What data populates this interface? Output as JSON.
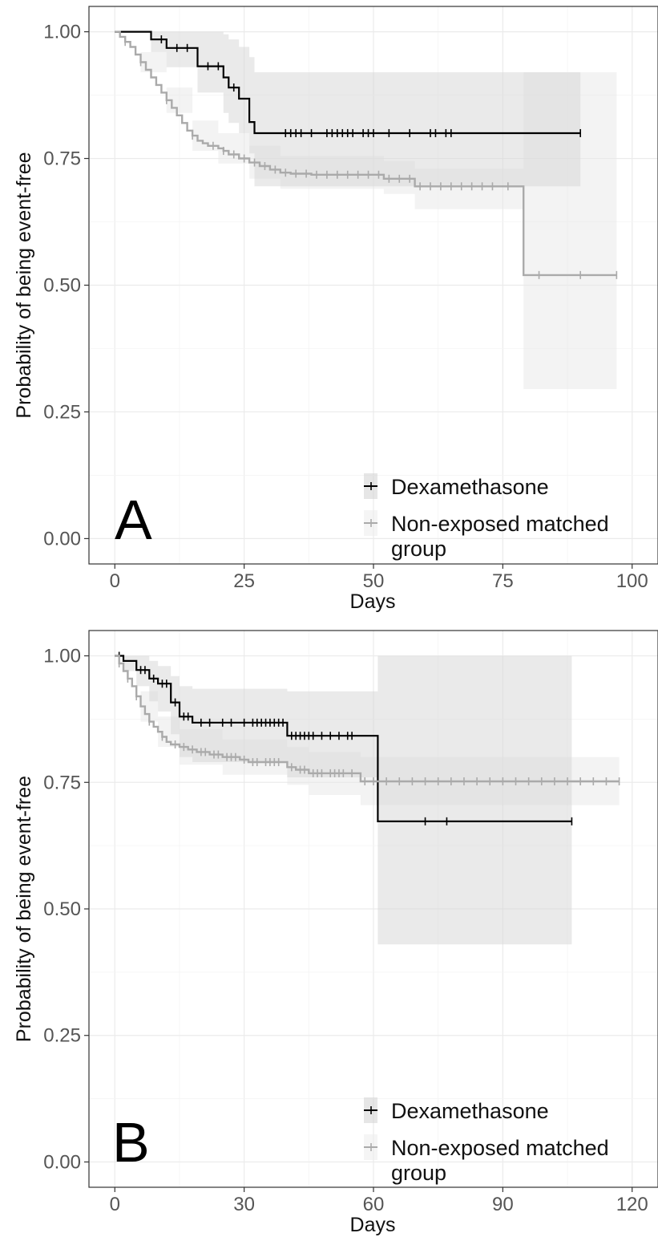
{
  "chart_data": [
    {
      "type": "line",
      "panel_label": "A",
      "xlabel": "Days",
      "ylabel": "Probability of being event-free",
      "xlim": [
        -5,
        105
      ],
      "ylim": [
        -0.05,
        1.05
      ],
      "x_ticks": [
        0,
        25,
        50,
        75,
        100
      ],
      "y_ticks": [
        0.0,
        0.25,
        0.5,
        0.75,
        1.0
      ],
      "y_tick_labels": [
        "0.00",
        "0.25",
        "0.50",
        "0.75",
        "1.00"
      ],
      "grid": true,
      "legend": {
        "position": "bottom-right",
        "entries": [
          {
            "label": "Dexamethasone",
            "lines": [
              "Dexamethasone"
            ]
          },
          {
            "label": "Non-exposed matched group",
            "lines": [
              "Non-exposed matched",
              "group"
            ]
          }
        ]
      },
      "series": [
        {
          "name": "Dexamethasone",
          "color": "#000000",
          "steps": [
            [
              0,
              1.0
            ],
            [
              7,
              0.985
            ],
            [
              10,
              0.968
            ],
            [
              16,
              0.932
            ],
            [
              21,
              0.91
            ],
            [
              22,
              0.89
            ],
            [
              24,
              0.868
            ],
            [
              26,
              0.822
            ],
            [
              27,
              0.8
            ],
            [
              90,
              0.8
            ]
          ],
          "ci": [
            [
              0,
              1.0,
              1.0
            ],
            [
              7,
              1.0,
              0.96
            ],
            [
              10,
              1.0,
              0.93
            ],
            [
              16,
              1.0,
              0.88
            ],
            [
              21,
              0.995,
              0.84
            ],
            [
              22,
              0.985,
              0.82
            ],
            [
              24,
              0.97,
              0.8
            ],
            [
              26,
              0.95,
              0.76
            ],
            [
              27,
              0.92,
              0.695
            ],
            [
              90,
              0.92,
              0.695
            ]
          ],
          "censored": [
            9,
            12,
            14,
            18,
            20,
            23,
            33,
            34,
            35,
            36,
            38,
            41,
            42,
            43,
            44,
            45,
            46,
            48,
            49,
            50,
            53,
            57,
            61,
            62,
            64,
            65,
            90
          ]
        },
        {
          "name": "Non-exposed matched group",
          "color": "#aaaaaa",
          "steps": [
            [
              0,
              1.0
            ],
            [
              1,
              0.99
            ],
            [
              2,
              0.98
            ],
            [
              3,
              0.97
            ],
            [
              4,
              0.955
            ],
            [
              5,
              0.94
            ],
            [
              6,
              0.925
            ],
            [
              7,
              0.91
            ],
            [
              8,
              0.895
            ],
            [
              9,
              0.88
            ],
            [
              10,
              0.865
            ],
            [
              11,
              0.85
            ],
            [
              12,
              0.835
            ],
            [
              13,
              0.82
            ],
            [
              14,
              0.805
            ],
            [
              15,
              0.795
            ],
            [
              16,
              0.785
            ],
            [
              17,
              0.78
            ],
            [
              18,
              0.775
            ],
            [
              20,
              0.77
            ],
            [
              21,
              0.765
            ],
            [
              22,
              0.758
            ],
            [
              24,
              0.75
            ],
            [
              26,
              0.742
            ],
            [
              28,
              0.735
            ],
            [
              30,
              0.728
            ],
            [
              32,
              0.722
            ],
            [
              34,
              0.72
            ],
            [
              38,
              0.718
            ],
            [
              52,
              0.71
            ],
            [
              58,
              0.695
            ],
            [
              79,
              0.52
            ],
            [
              97,
              0.52
            ]
          ],
          "ci": [
            [
              0,
              1.0,
              1.0
            ],
            [
              5,
              0.96,
              0.92
            ],
            [
              10,
              0.89,
              0.84
            ],
            [
              15,
              0.825,
              0.765
            ],
            [
              20,
              0.8,
              0.74
            ],
            [
              26,
              0.775,
              0.71
            ],
            [
              32,
              0.755,
              0.69
            ],
            [
              52,
              0.745,
              0.68
            ],
            [
              58,
              0.73,
              0.65
            ],
            [
              79,
              0.92,
              0.295
            ],
            [
              97,
              0.92,
              0.295
            ]
          ],
          "censored": [
            2,
            5,
            10,
            15,
            19,
            21,
            23,
            25,
            27,
            29,
            31,
            33,
            35,
            37,
            39,
            41,
            43,
            45,
            47,
            49,
            51,
            53,
            55,
            57,
            59,
            61,
            63,
            65,
            67,
            69,
            71,
            73,
            76,
            82,
            90,
            97
          ]
        }
      ]
    },
    {
      "type": "line",
      "panel_label": "B",
      "xlabel": "Days",
      "ylabel": "Probability of being event-free",
      "xlim": [
        -6,
        126
      ],
      "ylim": [
        -0.05,
        1.05
      ],
      "x_ticks": [
        0,
        30,
        60,
        90,
        120
      ],
      "y_ticks": [
        0.0,
        0.25,
        0.5,
        0.75,
        1.0
      ],
      "y_tick_labels": [
        "0.00",
        "0.25",
        "0.50",
        "0.75",
        "1.00"
      ],
      "grid": true,
      "legend": {
        "position": "bottom-right",
        "entries": [
          {
            "label": "Dexamethasone",
            "lines": [
              "Dexamethasone"
            ]
          },
          {
            "label": "Non-exposed matched group",
            "lines": [
              "Non-exposed matched",
              "group"
            ]
          }
        ]
      },
      "series": [
        {
          "name": "Dexamethasone",
          "color": "#000000",
          "steps": [
            [
              0,
              1.0
            ],
            [
              2,
              0.99
            ],
            [
              5,
              0.972
            ],
            [
              8,
              0.955
            ],
            [
              10,
              0.945
            ],
            [
              13,
              0.908
            ],
            [
              15,
              0.88
            ],
            [
              18,
              0.868
            ],
            [
              40,
              0.842
            ],
            [
              61,
              0.673
            ],
            [
              106,
              0.673
            ]
          ],
          "ci": [
            [
              0,
              1.0,
              1.0
            ],
            [
              2,
              1.0,
              0.97
            ],
            [
              5,
              1.0,
              0.94
            ],
            [
              8,
              0.99,
              0.91
            ],
            [
              10,
              0.98,
              0.89
            ],
            [
              13,
              0.96,
              0.845
            ],
            [
              15,
              0.94,
              0.8
            ],
            [
              18,
              0.935,
              0.79
            ],
            [
              40,
              0.93,
              0.76
            ],
            [
              61,
              1.0,
              0.43
            ],
            [
              106,
              1.0,
              0.43
            ]
          ],
          "censored": [
            1,
            6,
            7,
            9,
            11,
            12,
            14,
            16,
            17,
            20,
            22,
            25,
            27,
            30,
            32,
            33,
            34,
            35,
            36,
            37,
            38,
            39,
            41,
            42,
            43,
            44,
            45,
            46,
            48,
            50,
            52,
            54,
            55,
            72,
            77,
            106
          ]
        },
        {
          "name": "Non-exposed matched group",
          "color": "#aaaaaa",
          "steps": [
            [
              0,
              1.0
            ],
            [
              1,
              0.985
            ],
            [
              2,
              0.97
            ],
            [
              3,
              0.955
            ],
            [
              4,
              0.94
            ],
            [
              5,
              0.92
            ],
            [
              6,
              0.9
            ],
            [
              7,
              0.885
            ],
            [
              8,
              0.87
            ],
            [
              9,
              0.86
            ],
            [
              10,
              0.85
            ],
            [
              11,
              0.84
            ],
            [
              12,
              0.83
            ],
            [
              13,
              0.825
            ],
            [
              15,
              0.82
            ],
            [
              17,
              0.815
            ],
            [
              19,
              0.81
            ],
            [
              22,
              0.805
            ],
            [
              25,
              0.8
            ],
            [
              29,
              0.795
            ],
            [
              31,
              0.79
            ],
            [
              40,
              0.78
            ],
            [
              42,
              0.775
            ],
            [
              45,
              0.768
            ],
            [
              57,
              0.752
            ],
            [
              117,
              0.752
            ]
          ],
          "ci": [
            [
              0,
              1.0,
              1.0
            ],
            [
              6,
              0.93,
              0.87
            ],
            [
              10,
              0.88,
              0.82
            ],
            [
              15,
              0.855,
              0.785
            ],
            [
              25,
              0.835,
              0.765
            ],
            [
              40,
              0.82,
              0.745
            ],
            [
              45,
              0.81,
              0.725
            ],
            [
              57,
              0.8,
              0.705
            ],
            [
              117,
              0.8,
              0.705
            ]
          ],
          "censored": [
            1,
            3,
            5,
            8,
            11,
            14,
            16,
            18,
            20,
            21,
            23,
            24,
            26,
            27,
            28,
            30,
            32,
            33,
            35,
            36,
            37,
            38,
            41,
            43,
            44,
            46,
            47,
            48,
            50,
            51,
            52,
            53,
            55,
            58,
            60,
            63,
            66,
            69,
            72,
            75,
            78,
            81,
            84,
            87,
            90,
            93,
            96,
            99,
            102,
            105,
            108,
            111,
            114,
            117
          ]
        }
      ]
    }
  ]
}
